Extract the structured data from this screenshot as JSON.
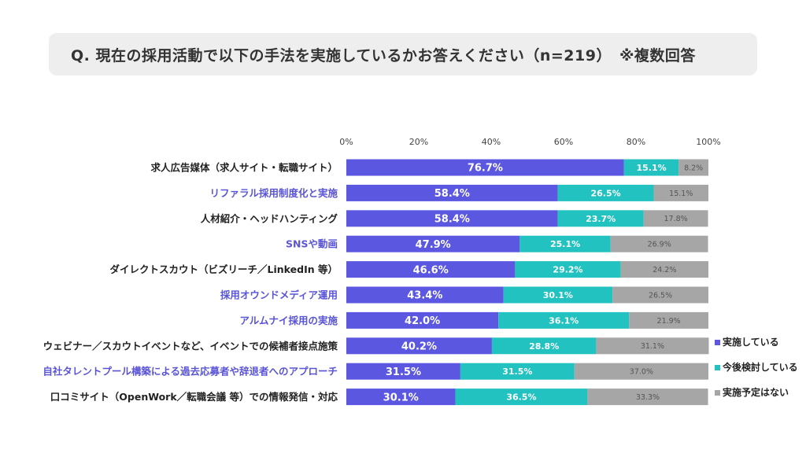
{
  "title": "Q. 現在の採用活動で以下の手法を実施しているかお答えください（n=219）　※複数回答",
  "colors": {
    "implemented": "#5b57e0",
    "considering": "#21c2c0",
    "not_planned": "#a6a6a6",
    "label_default": "#222222",
    "label_highlight": "#5a55d6"
  },
  "chart_data": {
    "type": "bar",
    "orientation": "horizontal",
    "stacked": "percent",
    "xlim": [
      0,
      100
    ],
    "x_ticks": [
      "0%",
      "20%",
      "40%",
      "60%",
      "80%",
      "100%"
    ],
    "legend_position": "right",
    "categories": [
      "求人広告媒体（求人サイト・転職サイト）",
      "リファラル採用制度化と実施",
      "人材紹介・ヘッドハンティング",
      "SNSや動画",
      "ダイレクトスカウト（ビズリーチ／LinkedIn 等）",
      "採用オウンドメディア運用",
      "アルムナイ採用の実施",
      "ウェビナー／スカウトイベントなど、イベントでの候補者接点施策",
      "自社タレントプール構築による過去応募者や辞退者へのアプローチ",
      "口コミサイト（OpenWork／転職会議 等）での情報発信・対応"
    ],
    "highlighted_categories": [
      false,
      true,
      false,
      true,
      false,
      true,
      true,
      false,
      true,
      false
    ],
    "series": [
      {
        "name": "実施している",
        "values": [
          76.7,
          58.4,
          58.4,
          47.9,
          46.6,
          43.4,
          42.0,
          40.2,
          31.5,
          30.1
        ]
      },
      {
        "name": "今後検討している",
        "values": [
          15.1,
          26.5,
          23.7,
          25.1,
          29.2,
          30.1,
          36.1,
          28.8,
          31.5,
          36.5
        ]
      },
      {
        "name": "実施予定はない",
        "values": [
          8.2,
          15.1,
          17.8,
          26.9,
          24.2,
          26.5,
          21.9,
          31.1,
          37.0,
          33.3
        ]
      }
    ]
  }
}
